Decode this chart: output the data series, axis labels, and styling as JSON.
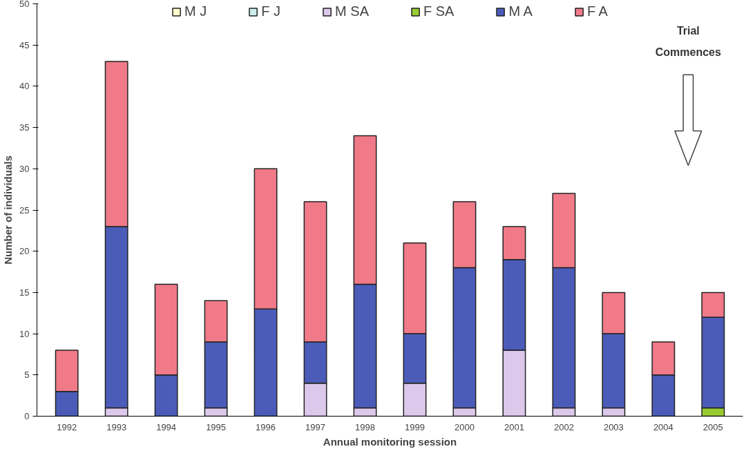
{
  "chart_data": {
    "type": "bar",
    "stacked": true,
    "xlabel": "Annual monitoring session",
    "ylabel": "Number of individuals",
    "categories": [
      "1992",
      "1993",
      "1994",
      "1995",
      "1996",
      "1997",
      "1998",
      "1999",
      "2000",
      "2001",
      "2002",
      "2003",
      "2004",
      "2005"
    ],
    "series": [
      {
        "name": "M J",
        "color": "#ffffcc",
        "values": [
          0,
          0,
          0,
          0,
          0,
          0,
          0,
          0,
          0,
          0,
          0,
          0,
          0,
          0
        ]
      },
      {
        "name": "F J",
        "color": "#cceeee",
        "values": [
          0,
          0,
          0,
          0,
          0,
          0,
          0,
          0,
          0,
          0,
          0,
          0,
          0,
          0
        ]
      },
      {
        "name": "M SA",
        "color": "#dcc8ea",
        "values": [
          0,
          1,
          0,
          1,
          0,
          4,
          1,
          4,
          1,
          8,
          1,
          1,
          0,
          0
        ]
      },
      {
        "name": "F SA",
        "color": "#99cc33",
        "values": [
          0,
          0,
          0,
          0,
          0,
          0,
          0,
          0,
          0,
          0,
          0,
          0,
          0,
          1
        ]
      },
      {
        "name": "M A",
        "color": "#4b5cb8",
        "values": [
          3,
          22,
          5,
          8,
          13,
          5,
          15,
          6,
          17,
          11,
          17,
          9,
          5,
          11
        ]
      },
      {
        "name": "F A",
        "color": "#f07a88",
        "values": [
          5,
          20,
          11,
          5,
          17,
          17,
          18,
          11,
          8,
          4,
          9,
          5,
          4,
          3
        ]
      }
    ],
    "ylim": [
      0,
      50
    ],
    "yticks": [
      0,
      5,
      10,
      15,
      20,
      25,
      30,
      35,
      40,
      45,
      50
    ],
    "grid": false,
    "legend": "top",
    "annotations": [
      "Trial Commences"
    ]
  }
}
